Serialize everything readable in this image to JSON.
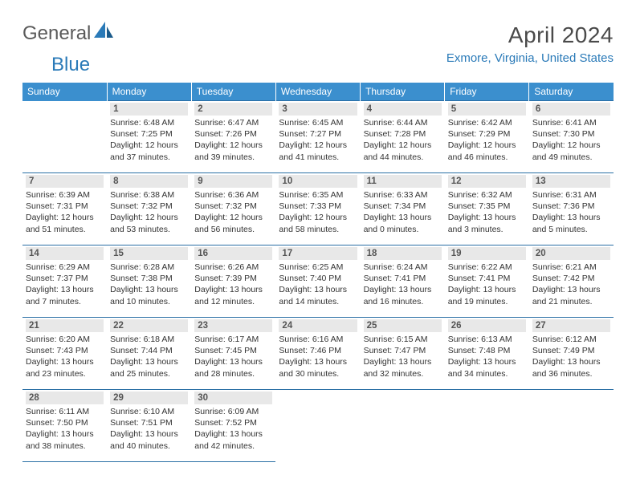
{
  "logo": {
    "general": "General",
    "blue": "Blue"
  },
  "title": "April 2024",
  "location": "Exmore, Virginia, United States",
  "colors": {
    "header_bg": "#3b8fce",
    "header_text": "#ffffff",
    "border": "#2a6fa5",
    "daynum_bg": "#e8e8e8",
    "accent": "#2a7ab8",
    "logo_gray": "#5a5a5a"
  },
  "day_headers": [
    "Sunday",
    "Monday",
    "Tuesday",
    "Wednesday",
    "Thursday",
    "Friday",
    "Saturday"
  ],
  "weeks": [
    [
      {
        "empty": true
      },
      {
        "num": "1",
        "sunrise": "Sunrise: 6:48 AM",
        "sunset": "Sunset: 7:25 PM",
        "day1": "Daylight: 12 hours",
        "day2": "and 37 minutes."
      },
      {
        "num": "2",
        "sunrise": "Sunrise: 6:47 AM",
        "sunset": "Sunset: 7:26 PM",
        "day1": "Daylight: 12 hours",
        "day2": "and 39 minutes."
      },
      {
        "num": "3",
        "sunrise": "Sunrise: 6:45 AM",
        "sunset": "Sunset: 7:27 PM",
        "day1": "Daylight: 12 hours",
        "day2": "and 41 minutes."
      },
      {
        "num": "4",
        "sunrise": "Sunrise: 6:44 AM",
        "sunset": "Sunset: 7:28 PM",
        "day1": "Daylight: 12 hours",
        "day2": "and 44 minutes."
      },
      {
        "num": "5",
        "sunrise": "Sunrise: 6:42 AM",
        "sunset": "Sunset: 7:29 PM",
        "day1": "Daylight: 12 hours",
        "day2": "and 46 minutes."
      },
      {
        "num": "6",
        "sunrise": "Sunrise: 6:41 AM",
        "sunset": "Sunset: 7:30 PM",
        "day1": "Daylight: 12 hours",
        "day2": "and 49 minutes."
      }
    ],
    [
      {
        "num": "7",
        "sunrise": "Sunrise: 6:39 AM",
        "sunset": "Sunset: 7:31 PM",
        "day1": "Daylight: 12 hours",
        "day2": "and 51 minutes."
      },
      {
        "num": "8",
        "sunrise": "Sunrise: 6:38 AM",
        "sunset": "Sunset: 7:32 PM",
        "day1": "Daylight: 12 hours",
        "day2": "and 53 minutes."
      },
      {
        "num": "9",
        "sunrise": "Sunrise: 6:36 AM",
        "sunset": "Sunset: 7:32 PM",
        "day1": "Daylight: 12 hours",
        "day2": "and 56 minutes."
      },
      {
        "num": "10",
        "sunrise": "Sunrise: 6:35 AM",
        "sunset": "Sunset: 7:33 PM",
        "day1": "Daylight: 12 hours",
        "day2": "and 58 minutes."
      },
      {
        "num": "11",
        "sunrise": "Sunrise: 6:33 AM",
        "sunset": "Sunset: 7:34 PM",
        "day1": "Daylight: 13 hours",
        "day2": "and 0 minutes."
      },
      {
        "num": "12",
        "sunrise": "Sunrise: 6:32 AM",
        "sunset": "Sunset: 7:35 PM",
        "day1": "Daylight: 13 hours",
        "day2": "and 3 minutes."
      },
      {
        "num": "13",
        "sunrise": "Sunrise: 6:31 AM",
        "sunset": "Sunset: 7:36 PM",
        "day1": "Daylight: 13 hours",
        "day2": "and 5 minutes."
      }
    ],
    [
      {
        "num": "14",
        "sunrise": "Sunrise: 6:29 AM",
        "sunset": "Sunset: 7:37 PM",
        "day1": "Daylight: 13 hours",
        "day2": "and 7 minutes."
      },
      {
        "num": "15",
        "sunrise": "Sunrise: 6:28 AM",
        "sunset": "Sunset: 7:38 PM",
        "day1": "Daylight: 13 hours",
        "day2": "and 10 minutes."
      },
      {
        "num": "16",
        "sunrise": "Sunrise: 6:26 AM",
        "sunset": "Sunset: 7:39 PM",
        "day1": "Daylight: 13 hours",
        "day2": "and 12 minutes."
      },
      {
        "num": "17",
        "sunrise": "Sunrise: 6:25 AM",
        "sunset": "Sunset: 7:40 PM",
        "day1": "Daylight: 13 hours",
        "day2": "and 14 minutes."
      },
      {
        "num": "18",
        "sunrise": "Sunrise: 6:24 AM",
        "sunset": "Sunset: 7:41 PM",
        "day1": "Daylight: 13 hours",
        "day2": "and 16 minutes."
      },
      {
        "num": "19",
        "sunrise": "Sunrise: 6:22 AM",
        "sunset": "Sunset: 7:41 PM",
        "day1": "Daylight: 13 hours",
        "day2": "and 19 minutes."
      },
      {
        "num": "20",
        "sunrise": "Sunrise: 6:21 AM",
        "sunset": "Sunset: 7:42 PM",
        "day1": "Daylight: 13 hours",
        "day2": "and 21 minutes."
      }
    ],
    [
      {
        "num": "21",
        "sunrise": "Sunrise: 6:20 AM",
        "sunset": "Sunset: 7:43 PM",
        "day1": "Daylight: 13 hours",
        "day2": "and 23 minutes."
      },
      {
        "num": "22",
        "sunrise": "Sunrise: 6:18 AM",
        "sunset": "Sunset: 7:44 PM",
        "day1": "Daylight: 13 hours",
        "day2": "and 25 minutes."
      },
      {
        "num": "23",
        "sunrise": "Sunrise: 6:17 AM",
        "sunset": "Sunset: 7:45 PM",
        "day1": "Daylight: 13 hours",
        "day2": "and 28 minutes."
      },
      {
        "num": "24",
        "sunrise": "Sunrise: 6:16 AM",
        "sunset": "Sunset: 7:46 PM",
        "day1": "Daylight: 13 hours",
        "day2": "and 30 minutes."
      },
      {
        "num": "25",
        "sunrise": "Sunrise: 6:15 AM",
        "sunset": "Sunset: 7:47 PM",
        "day1": "Daylight: 13 hours",
        "day2": "and 32 minutes."
      },
      {
        "num": "26",
        "sunrise": "Sunrise: 6:13 AM",
        "sunset": "Sunset: 7:48 PM",
        "day1": "Daylight: 13 hours",
        "day2": "and 34 minutes."
      },
      {
        "num": "27",
        "sunrise": "Sunrise: 6:12 AM",
        "sunset": "Sunset: 7:49 PM",
        "day1": "Daylight: 13 hours",
        "day2": "and 36 minutes."
      }
    ],
    [
      {
        "num": "28",
        "sunrise": "Sunrise: 6:11 AM",
        "sunset": "Sunset: 7:50 PM",
        "day1": "Daylight: 13 hours",
        "day2": "and 38 minutes."
      },
      {
        "num": "29",
        "sunrise": "Sunrise: 6:10 AM",
        "sunset": "Sunset: 7:51 PM",
        "day1": "Daylight: 13 hours",
        "day2": "and 40 minutes."
      },
      {
        "num": "30",
        "sunrise": "Sunrise: 6:09 AM",
        "sunset": "Sunset: 7:52 PM",
        "day1": "Daylight: 13 hours",
        "day2": "and 42 minutes."
      },
      {
        "empty": true
      },
      {
        "empty": true
      },
      {
        "empty": true
      },
      {
        "empty": true
      }
    ]
  ]
}
